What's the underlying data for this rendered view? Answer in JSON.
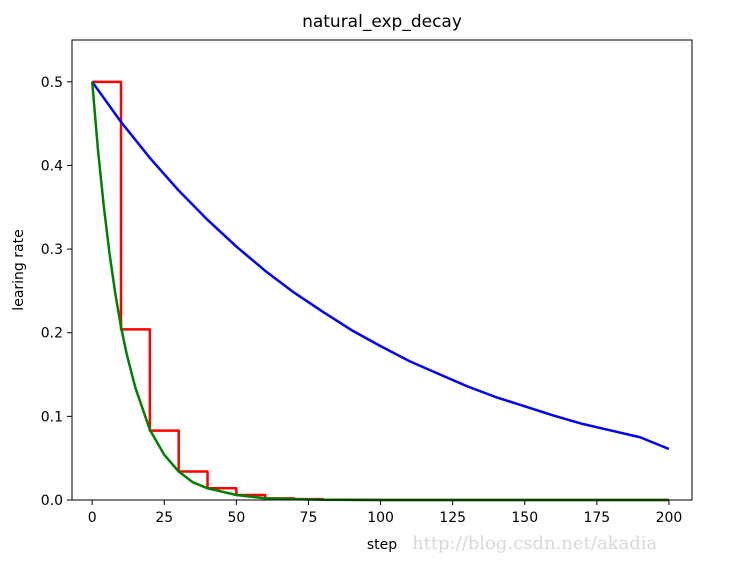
{
  "chart_data": {
    "type": "line",
    "title": "natural_exp_decay",
    "xlabel": "step",
    "ylabel": "learing rate",
    "xlim": [
      -7,
      208
    ],
    "ylim": [
      0,
      0.55
    ],
    "xticks": [
      0,
      25,
      50,
      75,
      100,
      125,
      150,
      175,
      200
    ],
    "xtick_labels": [
      "0",
      "25",
      "50",
      "75",
      "100",
      "125",
      "150",
      "175",
      "200"
    ],
    "yticks": [
      0.0,
      0.1,
      0.2,
      0.3,
      0.4,
      0.5
    ],
    "ytick_labels": [
      "0.0",
      "0.1",
      "0.2",
      "0.3",
      "0.4",
      "0.5"
    ],
    "grid": false,
    "legend": "none",
    "series": [
      {
        "color": "#ff0000",
        "style": "step",
        "x": [
          0,
          10,
          10,
          20,
          20,
          30,
          30,
          40,
          40,
          50,
          50,
          60,
          60,
          70,
          70,
          80,
          80,
          90,
          90,
          100,
          100,
          200
        ],
        "y": [
          0.5,
          0.5,
          0.204,
          0.204,
          0.083,
          0.083,
          0.034,
          0.034,
          0.014,
          0.014,
          0.006,
          0.006,
          0.002,
          0.002,
          0.001,
          0.001,
          0.0003,
          0.0003,
          0.0001,
          0.0001,
          0.0,
          0.0
        ]
      },
      {
        "color": "#0000ff",
        "style": "line",
        "x": [
          0,
          10,
          20,
          30,
          40,
          50,
          60,
          70,
          80,
          90,
          100,
          110,
          120,
          130,
          140,
          150,
          160,
          170,
          180,
          190,
          200
        ],
        "y": [
          0.5,
          0.452,
          0.409,
          0.37,
          0.335,
          0.303,
          0.274,
          0.248,
          0.225,
          0.203,
          0.184,
          0.166,
          0.151,
          0.136,
          0.123,
          0.112,
          0.101,
          0.091,
          0.083,
          0.075,
          0.061
        ]
      },
      {
        "color": "#008000",
        "style": "line",
        "x": [
          0,
          2,
          4,
          6,
          8,
          10,
          12,
          15,
          20,
          25,
          30,
          35,
          40,
          50,
          60,
          70,
          80,
          100,
          150,
          200
        ],
        "y": [
          0.5,
          0.419,
          0.352,
          0.295,
          0.247,
          0.207,
          0.174,
          0.134,
          0.084,
          0.054,
          0.034,
          0.021,
          0.014,
          0.006,
          0.002,
          0.001,
          0.0003,
          0.0,
          0.0,
          0.0
        ]
      }
    ]
  },
  "watermark": "http://blog.csdn.net/akadia"
}
